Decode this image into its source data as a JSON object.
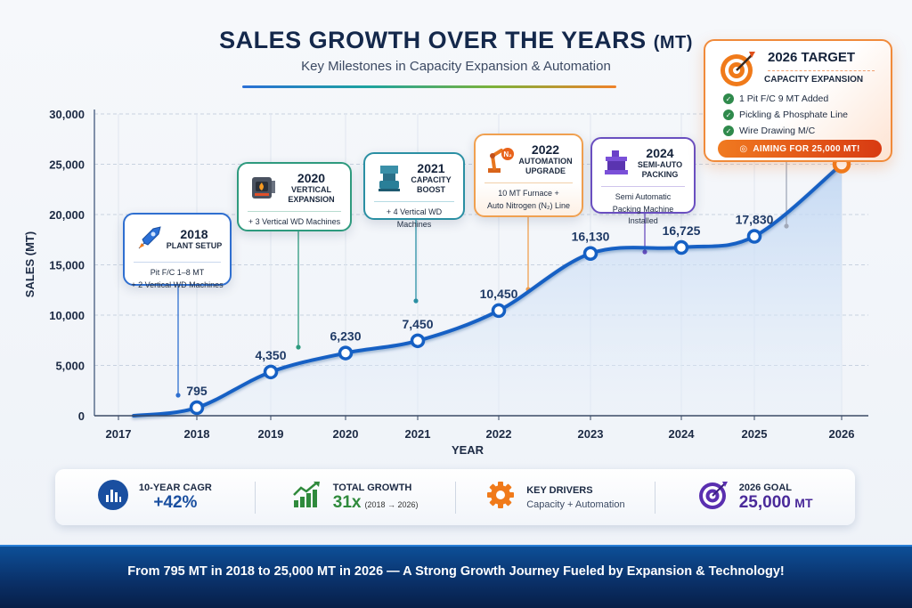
{
  "header": {
    "title": "SALES GROWTH OVER THE YEARS",
    "title_unit": "(MT)",
    "subtitle": "Key Milestones in Capacity Expansion & Automation"
  },
  "chart_data": {
    "type": "line",
    "title": "SALES GROWTH OVER THE YEARS (MT)",
    "xlabel": "YEAR",
    "ylabel": "SALES (MT)",
    "ylim": [
      0,
      30000
    ],
    "grid": true,
    "x_ticks": [
      "2017",
      "2018",
      "2019",
      "2020",
      "2021",
      "2022",
      "2023",
      "2024",
      "2025",
      "2026"
    ],
    "y_ticks": [
      "0",
      "5,000",
      "10,000",
      "15,000",
      "20,000",
      "25,000",
      "30,000"
    ],
    "y_tick_values": [
      0,
      5000,
      10000,
      15000,
      20000,
      25000,
      30000
    ],
    "series": [
      {
        "name": "Sales (MT)",
        "x": [
          "2018",
          "2019",
          "2020",
          "2021",
          "2022",
          "2023",
          "2024",
          "2025",
          "2026"
        ],
        "values": [
          795,
          4350,
          6230,
          7450,
          10450,
          16130,
          16725,
          17830,
          25000
        ],
        "labels": [
          "795",
          "4,350",
          "6,230",
          "7,450",
          "10,450",
          "16,130",
          "16,725",
          "17,830",
          "25,000"
        ],
        "highlight_last": true
      }
    ],
    "colors": {
      "line": "#1560c4",
      "area": "#cfe0f5",
      "target_point": "#f07a1a"
    }
  },
  "milestones": [
    {
      "year": "2018",
      "title": "PLANT SETUP",
      "desc1": "Pit F/C 1–8 MT",
      "desc2": "+ 2 Vertical WD Machines",
      "icon": "rocket-icon",
      "color": "#2f6fd0"
    },
    {
      "year": "2020",
      "title": "VERTICAL EXPANSION",
      "desc1": "+ 3 Vertical WD Machines",
      "desc2": "",
      "icon": "furnace-icon",
      "color": "#2e9a7e"
    },
    {
      "year": "2021",
      "title": "CAPACITY BOOST",
      "desc1": "+ 4 Vertical WD Machines",
      "desc2": "",
      "icon": "machine-icon",
      "color": "#2a8fa3"
    },
    {
      "year": "2022",
      "title": "AUTOMATION UPGRADE",
      "desc1": "10 MT Furnace +",
      "desc2": "Auto Nitrogen (N₂) Line",
      "icon": "robot-arm-icon",
      "color": "#f0a050"
    },
    {
      "year": "2024",
      "title": "SEMI-AUTO PACKING",
      "desc1": "Semi Automatic",
      "desc2": "Packing Machine Installed",
      "icon": "packing-machine-icon",
      "color": "#6a4fc0"
    }
  ],
  "target": {
    "title": "2026 TARGET",
    "subtitle": "CAPACITY EXPANSION",
    "items": [
      "1 Pit F/C 9 MT Added",
      "Pickling & Phosphate Line",
      "Wire Drawing M/C"
    ],
    "cta": "AIMING FOR 25,000 MT!"
  },
  "stats": [
    {
      "label": "10-YEAR CAGR",
      "value": "+42%",
      "color": "#1a4fa0",
      "icon": "bar-chart-icon"
    },
    {
      "label": "TOTAL GROWTH",
      "value": "31x",
      "note": "(2018 → 2026)",
      "color": "#2f8a3c",
      "icon": "growth-chart-icon"
    },
    {
      "label": "KEY DRIVERS",
      "text": "Capacity + Automation",
      "icon": "gear-icon"
    },
    {
      "label": "2026 GOAL",
      "value": "25,000",
      "unit": "MT",
      "color": "#4a2a9a",
      "icon": "target-icon"
    }
  ],
  "footer": {
    "text": "From 795 MT in 2018 to 25,000 MT in 2026 — A Strong Growth Journey Fueled by Expansion & Technology!"
  }
}
